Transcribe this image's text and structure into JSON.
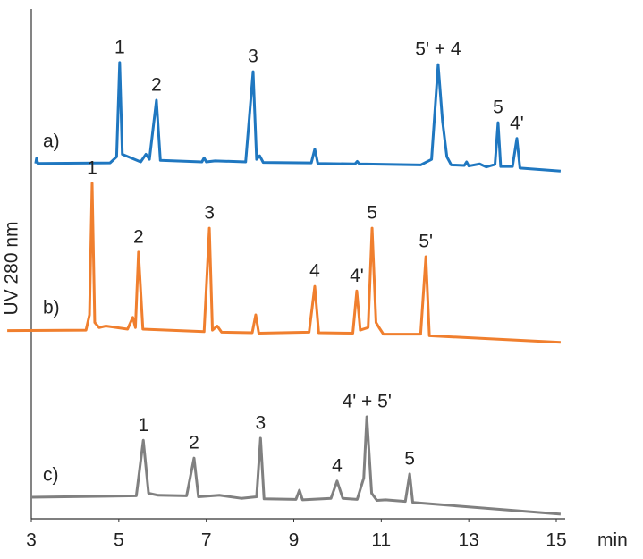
{
  "chart_data": {
    "type": "line",
    "ylabel": "UV 280 nm",
    "xlabel": "min",
    "xlim": [
      3,
      15
    ],
    "xticks": [
      3,
      5,
      7,
      9,
      11,
      13,
      15
    ],
    "ylim": [
      0,
      100
    ],
    "series": [
      {
        "name": "a)",
        "color": "#1f77c0",
        "x": [
          3.1,
          3.12,
          3.15,
          4.8,
          4.95,
          5.02,
          5.08,
          5.5,
          5.62,
          5.7,
          5.86,
          5.95,
          6.9,
          6.95,
          7.0,
          7.2,
          7.9,
          8.07,
          8.15,
          8.22,
          8.3,
          9.4,
          9.48,
          9.55,
          10.4,
          10.45,
          10.5,
          11.9,
          12.15,
          12.3,
          12.4,
          12.5,
          12.6,
          12.9,
          12.95,
          13.0,
          13.25,
          13.4,
          13.6,
          13.67,
          13.73,
          14.0,
          14.1,
          14.17,
          15.1
        ],
        "values": [
          69.7,
          70.7,
          69.7,
          69.8,
          71,
          89.5,
          71.5,
          70,
          71.5,
          70.5,
          82.1,
          70.3,
          70,
          70.8,
          70,
          70.2,
          70,
          87.7,
          70.5,
          71.2,
          69.9,
          69.8,
          72.5,
          69.7,
          69.6,
          70.1,
          69.6,
          69.4,
          70.5,
          89.1,
          78,
          71,
          69.4,
          69.3,
          70,
          69.2,
          69.6,
          69,
          69.5,
          77.7,
          69.1,
          69.1,
          74.6,
          68.8,
          68.2
        ]
      },
      {
        "name": "b)",
        "color": "#f07f2e",
        "x": [
          2.45,
          4.25,
          4.33,
          4.39,
          4.45,
          4.55,
          4.7,
          5.2,
          5.32,
          5.38,
          5.45,
          5.55,
          6.95,
          7.07,
          7.14,
          7.25,
          7.35,
          8.05,
          8.13,
          8.2,
          9.35,
          9.48,
          9.57,
          10.35,
          10.44,
          10.52,
          10.7,
          10.79,
          10.88,
          10.95,
          11.05,
          11.9,
          12.02,
          12.1,
          15.1
        ],
        "values": [
          36.9,
          37,
          40,
          65.8,
          38.5,
          37.5,
          37.8,
          37.2,
          39.5,
          37.5,
          52.3,
          37.2,
          36.7,
          57,
          37,
          37.8,
          36.6,
          36.5,
          40,
          36.4,
          36.6,
          45.6,
          36.5,
          36.4,
          44.7,
          37,
          37.5,
          57,
          38.5,
          37.5,
          36.2,
          36.2,
          51.4,
          35.9,
          34.6
        ]
      },
      {
        "name": "c)",
        "color": "#808080",
        "x": [
          3.0,
          5.4,
          5.56,
          5.68,
          5.9,
          6.55,
          6.72,
          6.82,
          7.3,
          7.8,
          8.15,
          8.24,
          8.32,
          9.05,
          9.13,
          9.2,
          9.85,
          9.99,
          10.12,
          10.45,
          10.6,
          10.67,
          10.78,
          10.9,
          11.1,
          11.55,
          11.65,
          11.72,
          15.1
        ],
        "values": [
          4.2,
          4.5,
          15.4,
          5,
          4.6,
          4.5,
          11.9,
          4.3,
          4.6,
          4,
          4.3,
          15.8,
          3.9,
          3.8,
          5.6,
          3.7,
          4,
          7.4,
          4,
          3.8,
          8,
          20,
          5,
          3.6,
          3.7,
          3.4,
          8.8,
          3.2,
          0.9
        ]
      }
    ],
    "annotations": [
      {
        "series": 0,
        "x": 5.02,
        "text": "1"
      },
      {
        "series": 0,
        "x": 5.86,
        "text": "2"
      },
      {
        "series": 0,
        "x": 8.07,
        "text": "3"
      },
      {
        "series": 0,
        "x": 12.3,
        "text": "5' + 4"
      },
      {
        "series": 0,
        "x": 13.67,
        "text": "5"
      },
      {
        "series": 0,
        "x": 14.1,
        "text": "4'"
      },
      {
        "series": 1,
        "x": 4.39,
        "text": "1"
      },
      {
        "series": 1,
        "x": 5.45,
        "text": "2"
      },
      {
        "series": 1,
        "x": 7.07,
        "text": "3"
      },
      {
        "series": 1,
        "x": 9.48,
        "text": "4"
      },
      {
        "series": 1,
        "x": 10.44,
        "text": "4'"
      },
      {
        "series": 1,
        "x": 10.79,
        "text": "5"
      },
      {
        "series": 1,
        "x": 12.02,
        "text": "5'"
      },
      {
        "series": 2,
        "x": 5.56,
        "text": "1"
      },
      {
        "series": 2,
        "x": 6.72,
        "text": "2"
      },
      {
        "series": 2,
        "x": 8.24,
        "text": "3"
      },
      {
        "series": 2,
        "x": 9.99,
        "text": "4"
      },
      {
        "series": 2,
        "x": 10.67,
        "text": "4' + 5'"
      },
      {
        "series": 2,
        "x": 11.65,
        "text": "5"
      }
    ]
  }
}
